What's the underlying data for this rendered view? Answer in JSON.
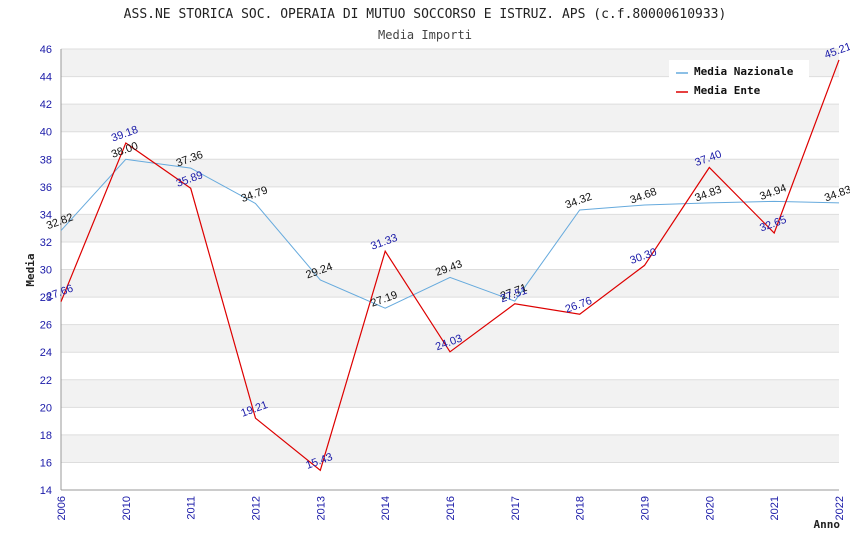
{
  "chart_data": {
    "type": "line",
    "title": "ASS.NE STORICA SOC. OPERAIA DI MUTUO SOCCORSO E ISTRUZ. APS (c.f.80000610933)",
    "subtitle": "Media Importi",
    "xlabel": "Anno",
    "ylabel": "Media",
    "ylim": [
      14,
      46
    ],
    "ystep": 2,
    "categories": [
      "2006",
      "2010",
      "2011",
      "2012",
      "2013",
      "2014",
      "2016",
      "2017",
      "2018",
      "2019",
      "2020",
      "2021",
      "2022"
    ],
    "series": [
      {
        "name": "Media Nazionale",
        "color": "#66aadd",
        "values": [
          32.82,
          38.0,
          37.36,
          34.79,
          29.24,
          27.19,
          29.43,
          27.71,
          34.32,
          34.68,
          34.83,
          34.94,
          34.83
        ],
        "labels": [
          "32.82",
          "38.00",
          "37.36",
          "34.79",
          "29.24",
          "27.19",
          "29.43",
          "27.71",
          "34.32",
          "34.68",
          "34.83",
          "34.94",
          "34.83"
        ]
      },
      {
        "name": "Media Ente",
        "color": "#dd0000",
        "values": [
          27.66,
          39.18,
          35.89,
          19.21,
          15.43,
          31.33,
          24.03,
          27.51,
          26.76,
          30.3,
          37.4,
          32.65,
          45.21
        ],
        "labels": [
          "27.66",
          "39.18",
          "35.89",
          "19.21",
          "15.43",
          "31.33",
          "24.03",
          "27.51",
          "26.76",
          "30.30",
          "37.40",
          "32.65",
          "45.21"
        ]
      }
    ],
    "grid": "horizontal-bands",
    "legend": "top-right"
  }
}
